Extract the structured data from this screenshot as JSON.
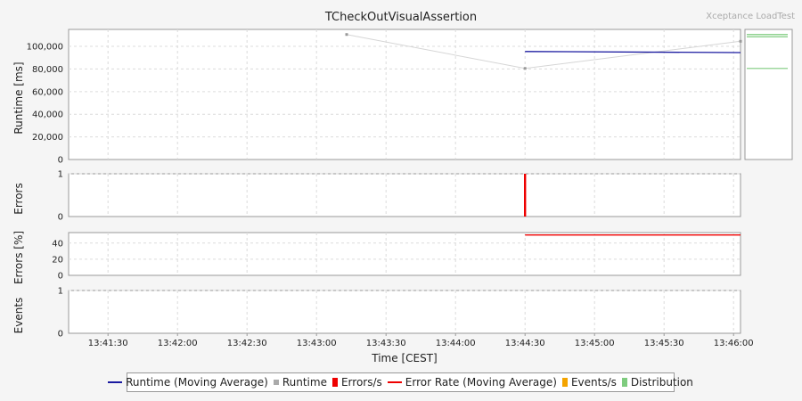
{
  "chart_data": {
    "type": "line",
    "title": "TCheckOutVisualAssertion",
    "watermark": "Xceptance LoadTest",
    "xlabel": "Time [CEST]",
    "x_ticks": [
      "13:41:30",
      "13:42:00",
      "13:42:30",
      "13:43:00",
      "13:43:30",
      "13:44:00",
      "13:44:30",
      "13:45:00",
      "13:45:30",
      "13:46:00"
    ],
    "x_range": [
      "13:41:13",
      "13:46:03"
    ],
    "grid": true,
    "panels": [
      {
        "id": "runtime",
        "ylabel": "Runtime [ms]",
        "ylim": [
          0,
          115000
        ],
        "y_ticks": [
          0,
          20000,
          40000,
          60000,
          80000,
          100000
        ],
        "y_tick_labels": [
          "0",
          "20,000",
          "40,000",
          "60,000",
          "80,000",
          "100,000"
        ],
        "series": [
          {
            "name": "Runtime",
            "color": "#bbbbbb",
            "kind": "points",
            "x": [
              "13:43:13",
              "13:44:30",
              "13:46:03"
            ],
            "y": [
              110500,
              80500,
              104500
            ]
          },
          {
            "name": "Runtime (Moving Average)",
            "color": "#1a1aa0",
            "kind": "line",
            "x": [
              "13:44:30",
              "13:46:03"
            ],
            "y": [
              95500,
              94500
            ]
          }
        ],
        "distribution": {
          "name": "Distribution",
          "color": "#7fcc7f",
          "values": [
            110500,
            108500,
            80500
          ]
        }
      },
      {
        "id": "errors",
        "ylabel": "Errors",
        "ylim": [
          0,
          1
        ],
        "y_ticks": [
          0,
          1
        ],
        "y_tick_labels": [
          "0",
          "1"
        ],
        "series": [
          {
            "name": "Errors/s",
            "color": "#ee0000",
            "kind": "bar",
            "x": [
              "13:44:30"
            ],
            "y": [
              1
            ]
          }
        ]
      },
      {
        "id": "error-rate",
        "ylabel": "Errors [%]",
        "ylim": [
          0,
          53
        ],
        "y_ticks": [
          0,
          20,
          40
        ],
        "y_tick_labels": [
          "0",
          "20",
          "40"
        ],
        "series": [
          {
            "name": "Error Rate (Moving Average)",
            "color": "#ee0000",
            "kind": "line",
            "x": [
              "13:44:30",
              "13:46:03"
            ],
            "y": [
              50,
              50
            ]
          }
        ]
      },
      {
        "id": "events",
        "ylabel": "Events",
        "ylim": [
          0,
          1
        ],
        "y_ticks": [
          0,
          1
        ],
        "y_tick_labels": [
          "0",
          "1"
        ],
        "series": []
      }
    ],
    "legend": [
      {
        "label": "Runtime (Moving Average)",
        "color": "#1a1aa0",
        "marker": "line"
      },
      {
        "label": "Runtime",
        "color": "#aaaaaa",
        "marker": "square"
      },
      {
        "label": "Errors/s",
        "color": "#ee0000",
        "marker": "bar"
      },
      {
        "label": "Error Rate (Moving Average)",
        "color": "#ee0000",
        "marker": "line"
      },
      {
        "label": "Events/s",
        "color": "#f4a400",
        "marker": "bar"
      },
      {
        "label": "Distribution",
        "color": "#7fcc7f",
        "marker": "bar"
      }
    ]
  }
}
